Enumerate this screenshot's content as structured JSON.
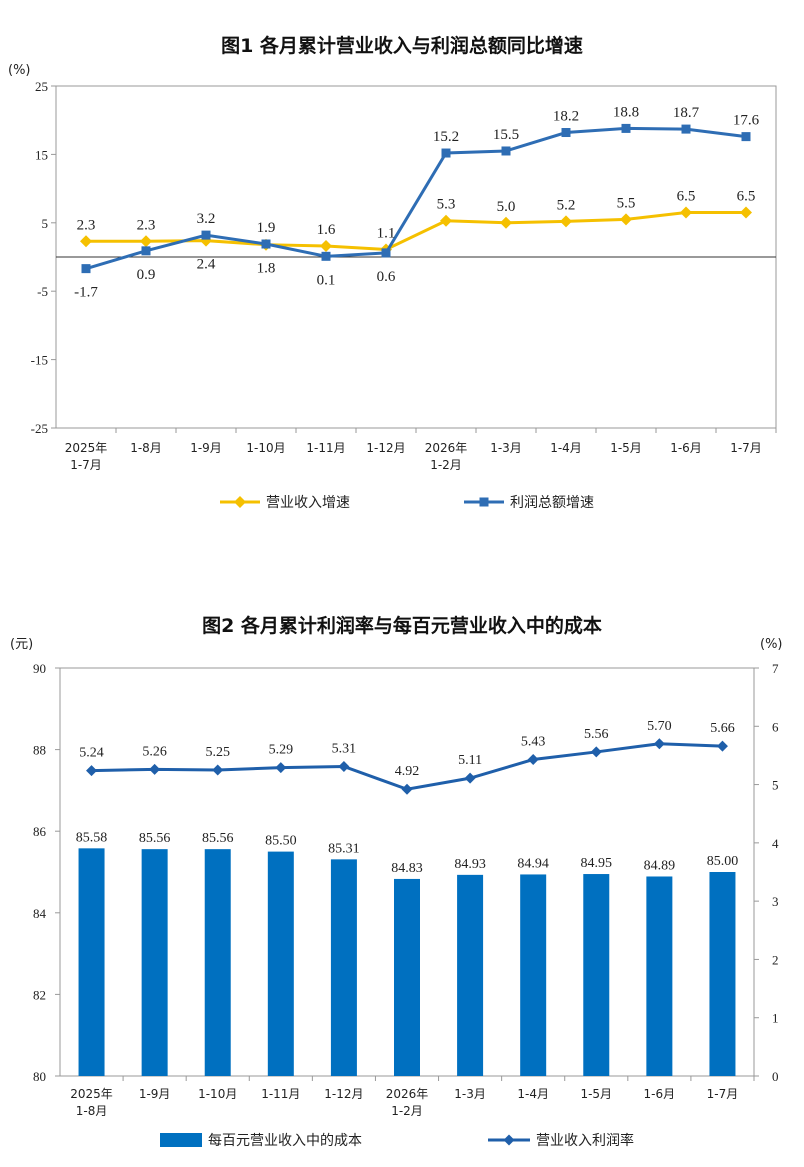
{
  "chart_data": [
    {
      "type": "line",
      "title": "图1  各月累计营业收入与利润总额同比增速",
      "unit": "(%)",
      "categories": [
        [
          "2025年",
          "1-7月"
        ],
        [
          "1-8月"
        ],
        [
          "1-9月"
        ],
        [
          "1-10月"
        ],
        [
          "1-11月"
        ],
        [
          "1-12月"
        ],
        [
          "2026年",
          "1-2月"
        ],
        [
          "1-3月"
        ],
        [
          "1-4月"
        ],
        [
          "1-5月"
        ],
        [
          "1-6月"
        ],
        [
          "1-7月"
        ]
      ],
      "yticks": [
        "25",
        "15",
        "5",
        "-5",
        "-15",
        "-25"
      ],
      "ylim": [
        -25,
        25
      ],
      "series": [
        {
          "name": "营业收入增速",
          "color": "#F5C000",
          "marker": "diamond",
          "values": [
            2.3,
            2.3,
            2.4,
            1.8,
            1.6,
            1.1,
            5.3,
            5.0,
            5.2,
            5.5,
            6.5,
            6.5
          ],
          "labels": [
            "2.3",
            "2.3",
            "2.4",
            "1.8",
            "1.6",
            "1.1",
            "5.3",
            "5.0",
            "5.2",
            "5.5",
            "6.5",
            "6.5"
          ]
        },
        {
          "name": "利润总额增速",
          "color": "#2E6DB4",
          "marker": "square",
          "values": [
            -1.7,
            0.9,
            3.2,
            1.9,
            0.1,
            0.6,
            15.2,
            15.5,
            18.2,
            18.8,
            18.7,
            17.6
          ],
          "labels": [
            "-1.7",
            "0.9",
            "3.2",
            "1.9",
            "0.1",
            "0.6",
            "15.2",
            "15.5",
            "18.2",
            "18.8",
            "18.7",
            "17.6"
          ]
        }
      ],
      "legend": "bottom",
      "grid": false
    },
    {
      "type": "bar+line",
      "title": "图2  各月累计利润率与每百元营业收入中的成本",
      "left_unit": "(元)",
      "right_unit": "(%)",
      "categories": [
        [
          "2025年",
          "1-8月"
        ],
        [
          "1-9月"
        ],
        [
          "1-10月"
        ],
        [
          "1-11月"
        ],
        [
          "1-12月"
        ],
        [
          "2026年",
          "1-2月"
        ],
        [
          "1-3月"
        ],
        [
          "1-4月"
        ],
        [
          "1-5月"
        ],
        [
          "1-6月"
        ],
        [
          "1-7月"
        ]
      ],
      "left_yticks": [
        "90",
        "88",
        "86",
        "84",
        "82",
        "80"
      ],
      "right_yticks": [
        "7",
        "6",
        "5",
        "4",
        "3",
        "2",
        "1",
        "0"
      ],
      "left_ylim": [
        80,
        90
      ],
      "right_ylim": [
        0,
        7
      ],
      "series": [
        {
          "name": "每百元营业收入中的成本",
          "kind": "bar",
          "axis": "left",
          "color": "#0070C0",
          "values": [
            85.58,
            85.56,
            85.56,
            85.5,
            85.31,
            84.83,
            84.93,
            84.94,
            84.95,
            84.89,
            85.0
          ],
          "labels": [
            "85.58",
            "85.56",
            "85.56",
            "85.50",
            "85.31",
            "84.83",
            "84.93",
            "84.94",
            "84.95",
            "84.89",
            "85.00"
          ]
        },
        {
          "name": "营业收入利润率",
          "kind": "line",
          "axis": "right",
          "color": "#1F5FAA",
          "marker": "diamond",
          "values": [
            5.24,
            5.26,
            5.25,
            5.29,
            5.31,
            4.92,
            5.11,
            5.43,
            5.56,
            5.7,
            5.66
          ],
          "labels": [
            "5.24",
            "5.26",
            "5.25",
            "5.29",
            "5.31",
            "4.92",
            "5.11",
            "5.43",
            "5.56",
            "5.70",
            "5.66"
          ]
        }
      ],
      "legend": "bottom",
      "grid": false
    }
  ]
}
